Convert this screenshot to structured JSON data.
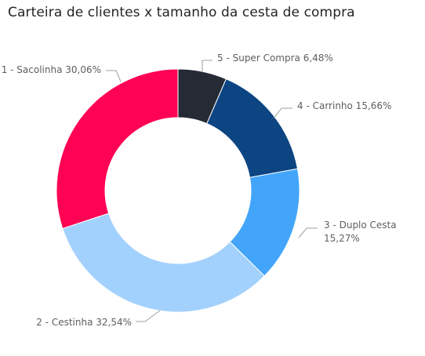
{
  "visual": {
    "title": "Carteira de clientes x tamanho da cesta de compra"
  },
  "chart_data": {
    "type": "pie",
    "variant": "donut",
    "title": "Carteira de clientes x tamanho da cesta de compra",
    "legend": "none",
    "slices": [
      {
        "label": "5 - Super Compra",
        "value": 6.48,
        "value_label": "6,48%",
        "color": "#252a35"
      },
      {
        "label": "4 - Carrinho",
        "value": 15.66,
        "value_label": "15,66%",
        "color": "#0d4583"
      },
      {
        "label": "3 - Duplo Cesta",
        "value": 15.27,
        "value_label": "15,27%",
        "color": "#42a5f9"
      },
      {
        "label": "2 - Cestinha",
        "value": 32.54,
        "value_label": "32,54%",
        "color": "#a3d1fd"
      },
      {
        "label": "1 - Sacolinha",
        "value": 30.06,
        "value_label": "30,06%",
        "color": "#fe0254"
      }
    ]
  }
}
